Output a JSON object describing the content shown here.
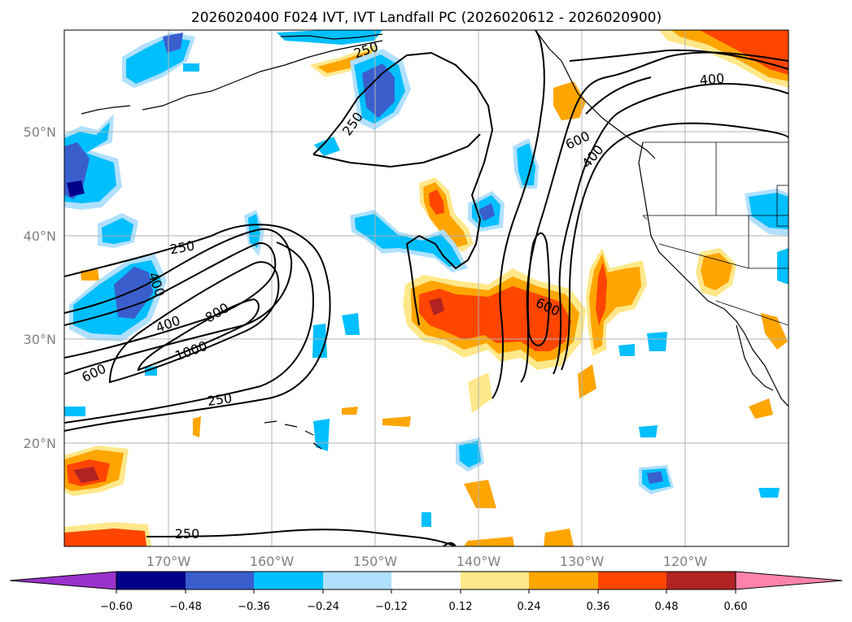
{
  "title": "2026020400 F024 IVT, IVT Landfall PC (2026020612 - 2026020900)",
  "latitude_labels": [
    "50°N",
    "40°N",
    "30°N",
    "20°N"
  ],
  "longitude_labels": [
    "170°W",
    "160°W",
    "150°W",
    "140°W",
    "130°W",
    "120°W"
  ],
  "contour_labels": [
    "250",
    "250",
    "250",
    "250",
    "250",
    "400",
    "400",
    "400",
    "600",
    "600",
    "600",
    "800",
    "1000"
  ],
  "colorbar": {
    "tick_labels": [
      "−0.60",
      "−0.48",
      "−0.36",
      "−0.24",
      "−0.12",
      "0.12",
      "0.24",
      "0.36",
      "0.48",
      "0.60"
    ],
    "colors": [
      "#9932cc",
      "#00008b",
      "#3a5fcd",
      "#00bfff",
      "#b0e0ff",
      "#ffffff",
      "#ffe88a",
      "#ffa500",
      "#ff4500",
      "#b22222",
      "#ff82ab"
    ]
  }
}
